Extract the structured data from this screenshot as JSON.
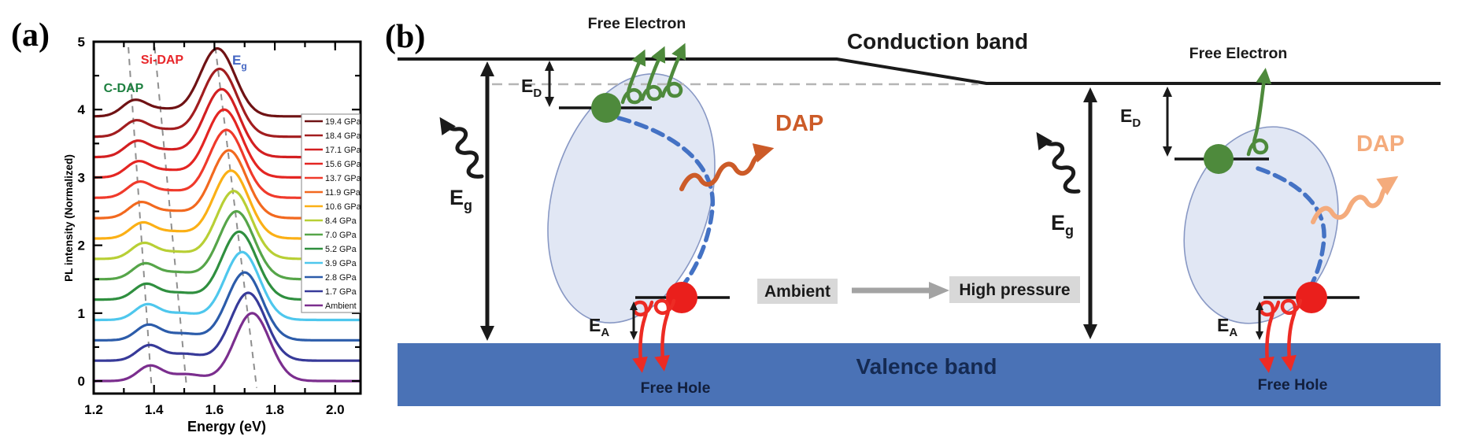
{
  "figure": {
    "panel_a_tag": "(a)",
    "panel_b_tag": "(b)"
  },
  "chart_data": {
    "type": "line",
    "title": "",
    "xlabel": "Energy (eV)",
    "ylabel": "PL intensity (Normalized)",
    "xlim": [
      1.2,
      2.084
    ],
    "ylim": [
      -0.185,
      5.0
    ],
    "x_ticks": [
      "1.2",
      "1.4",
      "1.6",
      "1.8",
      "2.0"
    ],
    "x_tick_values": [
      1.2,
      1.4,
      1.6,
      1.8,
      2.0
    ],
    "x_minor_ticks": [
      1.3,
      1.5,
      1.7,
      1.9,
      2.0
    ],
    "y_ticks": [
      "0",
      "1",
      "2",
      "3",
      "4",
      "5"
    ],
    "y_tick_values": [
      0,
      1,
      2,
      3,
      4,
      5
    ],
    "y_minor_ticks": [
      0.5,
      1.5,
      2.5,
      3.5,
      4.5
    ],
    "grid": false,
    "legend_position": "right-inside",
    "annotations": {
      "c_dap": "C-DAP",
      "si_dap": "Si-DAP",
      "eg_main": "E",
      "eg_sub": "g"
    },
    "annotation_colors": {
      "c_dap": "#1e8040",
      "si_dap": "#e8262a",
      "eg": "#4365c2"
    },
    "peak_model": {
      "shape": "gaussian-sum",
      "eg_amp": 1.0,
      "eg_sigma": 0.058,
      "si_dap_amp": 0.1,
      "si_dap_sigma": 0.055,
      "c_dap_amp": 0.22,
      "c_dap_sigma": 0.04,
      "curve_offset_step": 0.3
    },
    "series": [
      {
        "label": "19.4 GPa",
        "color": "#6f1214",
        "offset": 3.9,
        "eg_center": 1.61,
        "si_dap_center": 1.428,
        "c_dap_center": 1.334
      },
      {
        "label": "18.4 GPa",
        "color": "#a21d1f",
        "offset": 3.6,
        "eg_center": 1.617,
        "si_dap_center": 1.434,
        "c_dap_center": 1.338
      },
      {
        "label": "17.1 GPa",
        "color": "#d31f21",
        "offset": 3.3,
        "eg_center": 1.624,
        "si_dap_center": 1.44,
        "c_dap_center": 1.342
      },
      {
        "label": "15.6 GPa",
        "color": "#e42522",
        "offset": 3.0,
        "eg_center": 1.632,
        "si_dap_center": 1.446,
        "c_dap_center": 1.346
      },
      {
        "label": "13.7 GPa",
        "color": "#f03a2b",
        "offset": 2.7,
        "eg_center": 1.64,
        "si_dap_center": 1.452,
        "c_dap_center": 1.35
      },
      {
        "label": "11.9 GPa",
        "color": "#f2691f",
        "offset": 2.4,
        "eg_center": 1.648,
        "si_dap_center": 1.458,
        "c_dap_center": 1.355
      },
      {
        "label": "10.6 GPa",
        "color": "#fbb016",
        "offset": 2.1,
        "eg_center": 1.655,
        "si_dap_center": 1.464,
        "c_dap_center": 1.36
      },
      {
        "label": "8.4 GPa",
        "color": "#b8cf35",
        "offset": 1.8,
        "eg_center": 1.664,
        "si_dap_center": 1.47,
        "c_dap_center": 1.364
      },
      {
        "label": "7.0 GPa",
        "color": "#56a549",
        "offset": 1.5,
        "eg_center": 1.673,
        "si_dap_center": 1.476,
        "c_dap_center": 1.368
      },
      {
        "label": "5.2 GPa",
        "color": "#2f8f3f",
        "offset": 1.2,
        "eg_center": 1.682,
        "si_dap_center": 1.482,
        "c_dap_center": 1.372
      },
      {
        "label": "3.9 GPa",
        "color": "#4ec7ed",
        "offset": 0.9,
        "eg_center": 1.692,
        "si_dap_center": 1.488,
        "c_dap_center": 1.376
      },
      {
        "label": "2.8 GPa",
        "color": "#2c5caa",
        "offset": 0.6,
        "eg_center": 1.7,
        "si_dap_center": 1.494,
        "c_dap_center": 1.38
      },
      {
        "label": "1.7 GPa",
        "color": "#373a99",
        "offset": 0.3,
        "eg_center": 1.712,
        "si_dap_center": 1.5,
        "c_dap_center": 1.383
      },
      {
        "label": "Ambient",
        "color": "#7b2e8e",
        "offset": 0.0,
        "eg_center": 1.725,
        "si_dap_center": 1.506,
        "c_dap_center": 1.386
      }
    ],
    "guide_lines": [
      {
        "name": "c-dap-shift",
        "x_at_top": 1.315,
        "x_at_bottom": 1.392
      },
      {
        "name": "si-dap-shift",
        "x_at_top": 1.402,
        "x_at_bottom": 1.508
      },
      {
        "name": "eg-shift",
        "x_at_top": 1.603,
        "x_at_bottom": 1.74
      }
    ],
    "guide_line_span": {
      "y_top": 4.92,
      "y_bottom": -0.1
    }
  },
  "diagram": {
    "conduction_band": "Conduction band",
    "valence_band": "Valence band",
    "free_electron_left": "Free Electron",
    "free_electron_right": "Free Electron",
    "free_hole_left": "Free Hole",
    "free_hole_right": "Free Hole",
    "dap_left": "DAP",
    "dap_right": "DAP",
    "ambient": "Ambient",
    "high_pressure": "High pressure",
    "e": "E",
    "g_sub": "g",
    "d_sub": "D",
    "a_sub": "A",
    "colors": {
      "band_line": "#1a1a1a",
      "valence_band_fill": "#4a72b6",
      "valence_text": "#152a52",
      "ellipse_fill": "#dce3f2",
      "ellipse_stroke": "#8898c4",
      "donor_green": "#4e8a3c",
      "acceptor_red": "#ea1f1c",
      "hole_arrow_red": "#ed2b24",
      "transition_blue": "#4472c4",
      "dap_arrow_left": "#cc5b28",
      "dap_arrow_right": "#f4ab7c",
      "label_bg": "#d8d8d8",
      "gray_arrow": "#a3a3a3",
      "donor_ref_dash": "#b5b5b5"
    }
  }
}
